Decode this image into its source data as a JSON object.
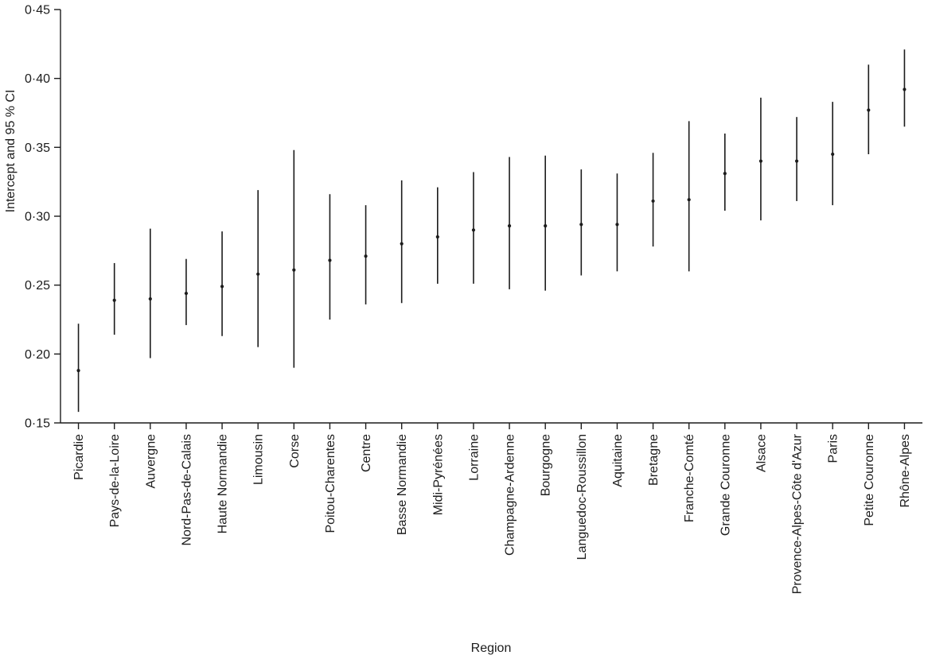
{
  "chart_data": {
    "type": "scatter",
    "subtype": "point-estimates-with-95ci-error-bars",
    "title": "",
    "xlabel": "Region",
    "ylabel": "Intercept and 95 % CI",
    "ylim": [
      0.15,
      0.45
    ],
    "ytick_values": [
      0.15,
      0.2,
      0.25,
      0.3,
      0.35,
      0.4,
      0.45
    ],
    "ytick_labels": [
      "0·15",
      "0·20",
      "0·25",
      "0·30",
      "0·35",
      "0·40",
      "0·45"
    ],
    "grid": false,
    "legend": "none",
    "color": "#1c1c1c",
    "categories": [
      "Picardie",
      "Pays-de-la-Loire",
      "Auvergne",
      "Nord-Pas-de-Calais",
      "Haute Normandie",
      "Limousin",
      "Corse",
      "Poitou-Charentes",
      "Centre",
      "Basse Normandie",
      "Midi-Pyrénées",
      "Lorraine",
      "Champagne-Ardenne",
      "Bourgogne",
      "Languedoc-Roussillon",
      "Aquitaine",
      "Bretagne",
      "Franche-Comté",
      "Grande Couronne",
      "Alsace",
      "Provence-Alpes-Côte d'Azur",
      "Paris",
      "Petite Couronne",
      "Rhône-Alpes"
    ],
    "estimates": [
      0.188,
      0.239,
      0.24,
      0.244,
      0.249,
      0.258,
      0.261,
      0.268,
      0.271,
      0.28,
      0.285,
      0.29,
      0.293,
      0.293,
      0.294,
      0.294,
      0.311,
      0.312,
      0.331,
      0.34,
      0.34,
      0.345,
      0.377,
      0.392
    ],
    "ci_low": [
      0.158,
      0.214,
      0.197,
      0.221,
      0.213,
      0.205,
      0.19,
      0.225,
      0.236,
      0.237,
      0.251,
      0.251,
      0.247,
      0.246,
      0.257,
      0.26,
      0.278,
      0.26,
      0.304,
      0.297,
      0.311,
      0.308,
      0.345,
      0.365
    ],
    "ci_high": [
      0.222,
      0.266,
      0.291,
      0.269,
      0.289,
      0.319,
      0.348,
      0.316,
      0.308,
      0.326,
      0.321,
      0.332,
      0.343,
      0.344,
      0.334,
      0.331,
      0.346,
      0.369,
      0.36,
      0.386,
      0.372,
      0.383,
      0.41,
      0.421
    ]
  }
}
